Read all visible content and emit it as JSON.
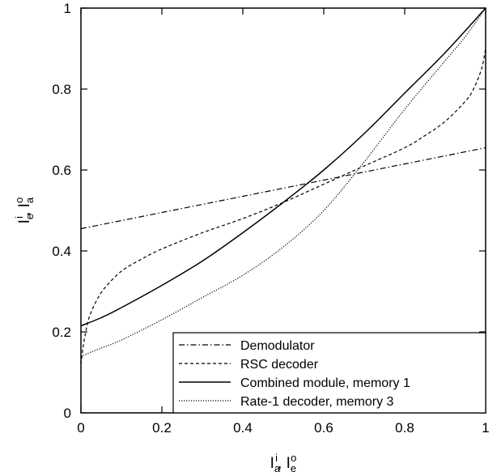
{
  "chart_data": {
    "type": "line",
    "title": "",
    "xlabel": {
      "base1": "I",
      "sub1": "a",
      "sup1": "i",
      "sep": ", ",
      "base2": "I",
      "sub2": "e",
      "sup2": "o"
    },
    "ylabel": {
      "base1": "I",
      "sub1": "e",
      "sup1": "i",
      "sep": ", ",
      "base2": "I",
      "sub2": "a",
      "sup2": "o"
    },
    "xlim": [
      0,
      1
    ],
    "ylim": [
      0,
      1
    ],
    "x_ticks": [
      "0",
      "0.2",
      "0.4",
      "0.6",
      "0.8",
      "1"
    ],
    "y_ticks": [
      "0",
      "0.2",
      "0.4",
      "0.6",
      "0.8",
      "1"
    ],
    "grid": false,
    "legend_position": "bottom-right",
    "series": [
      {
        "name": "Demodulator",
        "style": "dash-dot",
        "color": "#000000",
        "x": [
          0,
          0.2,
          0.4,
          0.6,
          0.8,
          1.0
        ],
        "y": [
          0.455,
          0.495,
          0.535,
          0.575,
          0.615,
          0.655
        ]
      },
      {
        "name": "RSC decoder",
        "style": "dashed",
        "color": "#000000",
        "x": [
          0,
          0.005,
          0.01,
          0.02,
          0.04,
          0.06,
          0.1,
          0.15,
          0.2,
          0.3,
          0.4,
          0.5,
          0.6,
          0.7,
          0.8,
          0.85,
          0.9,
          0.95,
          0.97,
          0.99,
          1.0
        ],
        "y": [
          0.12,
          0.16,
          0.19,
          0.235,
          0.28,
          0.31,
          0.35,
          0.38,
          0.405,
          0.445,
          0.48,
          0.52,
          0.565,
          0.61,
          0.655,
          0.685,
          0.72,
          0.77,
          0.8,
          0.85,
          0.9
        ]
      },
      {
        "name": "Combined module, memory 1",
        "style": "solid",
        "color": "#000000",
        "x": [
          0,
          0.05,
          0.1,
          0.2,
          0.3,
          0.4,
          0.5,
          0.6,
          0.7,
          0.8,
          0.9,
          1.0
        ],
        "y": [
          0.215,
          0.235,
          0.26,
          0.315,
          0.375,
          0.445,
          0.52,
          0.6,
          0.69,
          0.79,
          0.89,
          1.0
        ]
      },
      {
        "name": "Rate-1 decoder, memory 3",
        "style": "dotted",
        "color": "#000000",
        "x": [
          0,
          0.05,
          0.1,
          0.2,
          0.3,
          0.4,
          0.5,
          0.6,
          0.7,
          0.8,
          0.9,
          0.95,
          1.0
        ],
        "y": [
          0.14,
          0.16,
          0.18,
          0.23,
          0.285,
          0.34,
          0.41,
          0.5,
          0.62,
          0.75,
          0.87,
          0.93,
          1.0
        ]
      }
    ]
  }
}
